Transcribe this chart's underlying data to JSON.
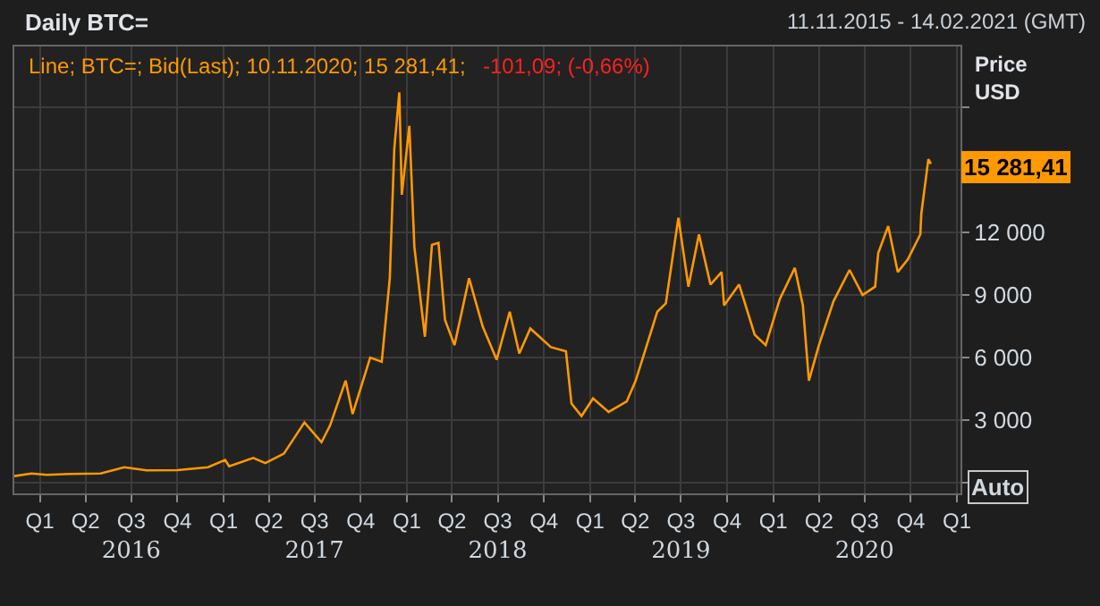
{
  "chart_data": {
    "type": "line",
    "title": "Daily BTC=",
    "subtitle": "Line; BTC=; Bid(Last); 10.11.2020; 15 281,41;",
    "ylabel": "Price USD",
    "annotations": [
      "11.11.2015 - 14.02.2021 (GMT)",
      "-101,09; (-0,66%)",
      "Auto",
      "15 281,41"
    ],
    "x": [
      "2015-11-11",
      "2015-12-15",
      "2016-01-15",
      "2016-03-01",
      "2016-05-01",
      "2016-06-17",
      "2016-08-01",
      "2016-10-01",
      "2016-12-01",
      "2017-01-04",
      "2017-01-12",
      "2017-03-01",
      "2017-03-25",
      "2017-05-01",
      "2017-06-11",
      "2017-07-15",
      "2017-08-01",
      "2017-09-01",
      "2017-09-15",
      "2017-10-20",
      "2017-11-12",
      "2017-11-28",
      "2017-12-07",
      "2017-12-17",
      "2017-12-22",
      "2018-01-06",
      "2018-01-16",
      "2018-02-06",
      "2018-02-20",
      "2018-03-05",
      "2018-03-18",
      "2018-04-06",
      "2018-05-05",
      "2018-06-01",
      "2018-06-29",
      "2018-07-25",
      "2018-08-13",
      "2018-09-04",
      "2018-10-15",
      "2018-11-14",
      "2018-11-25",
      "2018-12-15",
      "2019-01-07",
      "2019-02-07",
      "2019-03-15",
      "2019-04-02",
      "2019-05-15",
      "2019-06-01",
      "2019-06-26",
      "2019-07-16",
      "2019-08-06",
      "2019-08-29",
      "2019-09-20",
      "2019-09-25",
      "2019-10-25",
      "2019-11-25",
      "2019-12-17",
      "2020-01-14",
      "2020-02-13",
      "2020-02-29",
      "2020-03-12",
      "2020-04-01",
      "2020-04-30",
      "2020-06-01",
      "2020-06-27",
      "2020-07-22",
      "2020-07-28",
      "2020-08-17",
      "2020-09-05",
      "2020-09-25",
      "2020-10-20",
      "2020-10-22",
      "2020-11-05",
      "2020-11-10"
    ],
    "series": [
      {
        "color": "#ff9900",
        "values": [
          330,
          450,
          390,
          430,
          450,
          750,
          600,
          610,
          750,
          1100,
          800,
          1200,
          950,
          1400,
          2900,
          1950,
          2750,
          4900,
          3300,
          6000,
          5800,
          9800,
          16000,
          18700,
          13800,
          17100,
          11300,
          7000,
          11400,
          11500,
          7800,
          6600,
          9800,
          7500,
          5900,
          8200,
          6200,
          7400,
          6500,
          6300,
          3800,
          3200,
          4050,
          3400,
          3900,
          4900,
          8200,
          8600,
          12700,
          9400,
          11900,
          9500,
          10100,
          8500,
          9500,
          7100,
          6600,
          8800,
          10300,
          8500,
          4900,
          6600,
          8700,
          10200,
          9000,
          9400,
          11000,
          12300,
          10100,
          10700,
          11900,
          12900,
          15500,
          15281.41
        ]
      }
    ],
    "xlim": [
      "2015-11-11",
      "2021-01-08"
    ],
    "xticks": [
      {
        "value": "2016-01-01",
        "label": "Q1"
      },
      {
        "value": "2016-04-01",
        "label": "Q2"
      },
      {
        "value": "2016-07-01",
        "label": "Q3"
      },
      {
        "value": "2016-10-01",
        "label": "Q4"
      },
      {
        "value": "2017-01-01",
        "label": "Q1"
      },
      {
        "value": "2017-04-01",
        "label": "Q2"
      },
      {
        "value": "2017-07-01",
        "label": "Q3"
      },
      {
        "value": "2017-10-01",
        "label": "Q4"
      },
      {
        "value": "2018-01-01",
        "label": "Q1"
      },
      {
        "value": "2018-04-01",
        "label": "Q2"
      },
      {
        "value": "2018-07-01",
        "label": "Q3"
      },
      {
        "value": "2018-10-01",
        "label": "Q4"
      },
      {
        "value": "2019-01-01",
        "label": "Q1"
      },
      {
        "value": "2019-04-01",
        "label": "Q2"
      },
      {
        "value": "2019-07-01",
        "label": "Q3"
      },
      {
        "value": "2019-10-01",
        "label": "Q4"
      },
      {
        "value": "2020-01-01",
        "label": "Q1"
      },
      {
        "value": "2020-04-01",
        "label": "Q2"
      },
      {
        "value": "2020-07-01",
        "label": "Q3"
      },
      {
        "value": "2020-10-01",
        "label": "Q4"
      },
      {
        "value": "2021-01-01",
        "label": "Q1"
      }
    ],
    "x2lim": [
      "2015-11-11",
      "2021-01-08"
    ],
    "x2ticks": [
      {
        "value": "2016-07-01",
        "label": "2016"
      },
      {
        "value": "2017-07-01",
        "label": "2017"
      },
      {
        "value": "2018-07-01",
        "label": "2018"
      },
      {
        "value": "2019-07-01",
        "label": "2019"
      },
      {
        "value": "2020-07-01",
        "label": "2020"
      }
    ],
    "ylim": [
      -500,
      20900
    ],
    "yticks": [
      {
        "value": 0,
        "label": null
      },
      {
        "value": 3000,
        "label": "3 000"
      },
      {
        "value": 6000,
        "label": "6 000"
      },
      {
        "value": 9000,
        "label": "9 000"
      },
      {
        "value": 12000,
        "label": "12 000"
      },
      {
        "value": 15000,
        "label": null
      },
      {
        "value": 18000,
        "label": null
      }
    ],
    "grid": true,
    "legend": false,
    "marker": "none",
    "line_style": "solid"
  }
}
